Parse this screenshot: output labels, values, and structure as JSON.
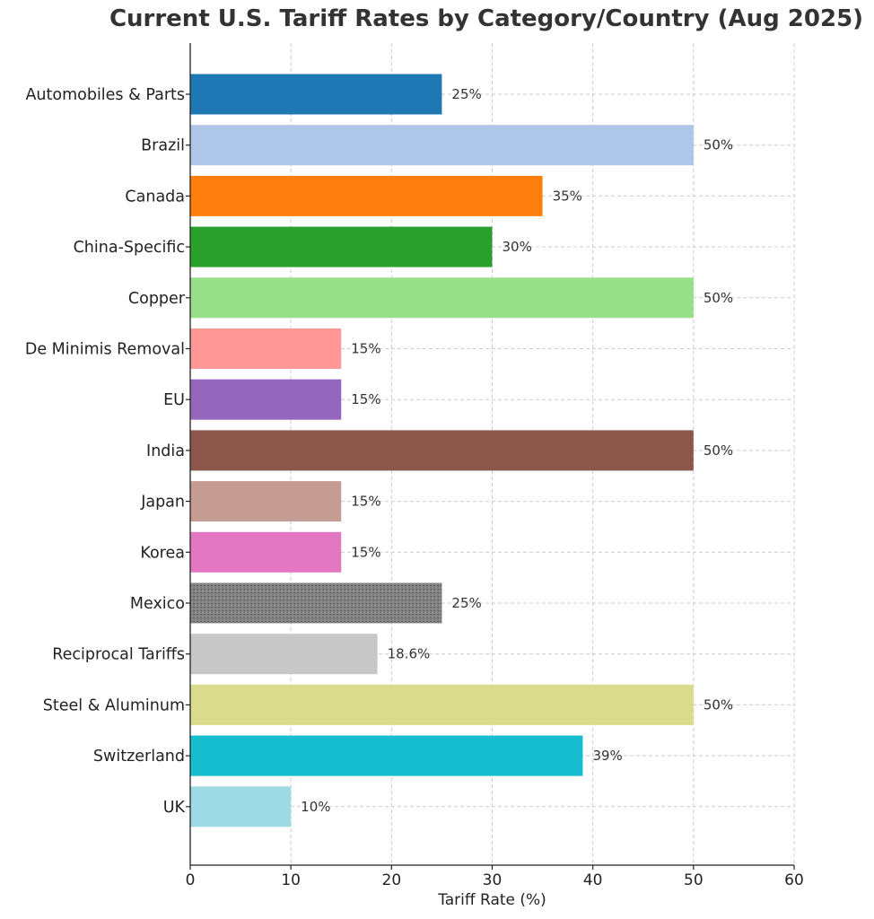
{
  "chart_data": {
    "type": "bar",
    "orientation": "horizontal",
    "title": "Current U.S. Tariff Rates by Category/Country (Aug 2025)",
    "xlabel": "Tariff Rate (%)",
    "ylabel": "",
    "xlim": [
      0,
      60
    ],
    "xticks": [
      0,
      10,
      20,
      30,
      40,
      50,
      60
    ],
    "grid": true,
    "categories": [
      "Automobiles & Parts",
      "Brazil",
      "Canada",
      "China-Specific",
      "Copper",
      "De Minimis Removal",
      "EU",
      "India",
      "Japan",
      "Korea",
      "Mexico",
      "Reciprocal Tariffs",
      "Steel & Aluminum",
      "Switzerland",
      "UK"
    ],
    "values": [
      25,
      50,
      35,
      30,
      50,
      15,
      15,
      50,
      15,
      15,
      25,
      18.6,
      50,
      39,
      10
    ],
    "value_labels": [
      "25%",
      "50%",
      "35%",
      "30%",
      "50%",
      "15%",
      "15%",
      "50%",
      "15%",
      "15%",
      "25%",
      "18.6%",
      "50%",
      "39%",
      "10%"
    ],
    "colors": [
      "#1f77b4",
      "#aec7e8",
      "#ff7f0e",
      "#2ca02c",
      "#98df8a",
      "#ff9896",
      "#9467bd",
      "#8c564b",
      "#c49c94",
      "#e377c2",
      "#7f7f7f",
      "#c7c7c7",
      "#dbdb8d",
      "#17becf",
      "#9edae5"
    ]
  }
}
